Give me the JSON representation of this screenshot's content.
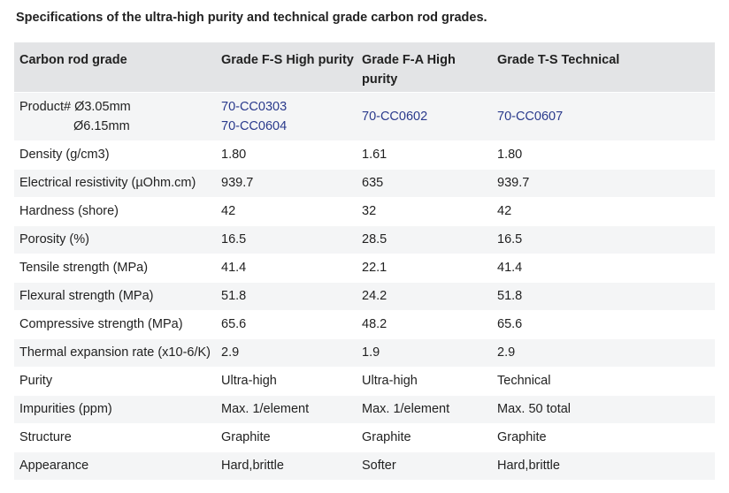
{
  "caption": "Specifications of the ultra-high purity and technical grade carbon rod grades.",
  "headers": [
    "Carbon rod grade",
    "Grade F-S High purity",
    "Grade F-A High purity",
    "Grade T-S Technical"
  ],
  "product": {
    "label_line1": "Product# Ø3.05mm",
    "label_line2": "Ø6.15mm",
    "fs_links": [
      "70-CC0303",
      "70-CC0604"
    ],
    "fa_link": "70-CC0602",
    "ts_link": "70-CC0607"
  },
  "rows": [
    {
      "label": "Density (g/cm3)",
      "fs": "1.80",
      "fa": "1.61",
      "ts": "1.80"
    },
    {
      "label": "Electrical resistivity (µOhm.cm)",
      "fs": "939.7",
      "fa": "635",
      "ts": "939.7"
    },
    {
      "label": "Hardness (shore)",
      "fs": "42",
      "fa": "32",
      "ts": "42"
    },
    {
      "label": "Porosity (%)",
      "fs": "16.5",
      "fa": "28.5",
      "ts": "16.5"
    },
    {
      "label": "Tensile strength (MPa)",
      "fs": "41.4",
      "fa": "22.1",
      "ts": "41.4"
    },
    {
      "label": "Flexural strength (MPa)",
      "fs": "51.8",
      "fa": "24.2",
      "ts": "51.8"
    },
    {
      "label": "Compressive strength (MPa)",
      "fs": "65.6",
      "fa": "48.2",
      "ts": "65.6"
    },
    {
      "label": "Thermal expansion rate (x10-6/K)",
      "fs": "2.9",
      "fa": "1.9",
      "ts": "2.9"
    },
    {
      "label": "Purity",
      "fs": "Ultra-high",
      "fa": "Ultra-high",
      "ts": "Technical"
    },
    {
      "label": "Impurities (ppm)",
      "fs": "Max. 1/element",
      "fa": "Max. 1/element",
      "ts": "Max. 50 total"
    },
    {
      "label": "Structure",
      "fs": "Graphite",
      "fa": "Graphite",
      "ts": "Graphite"
    },
    {
      "label": "Appearance",
      "fs": "Hard,brittle",
      "fa": "Softer",
      "ts": "Hard,brittle"
    }
  ],
  "colors": {
    "header_bg": "#e3e4e6",
    "stripe_bg": "#f4f5f6",
    "link": "#2a3a8c"
  }
}
